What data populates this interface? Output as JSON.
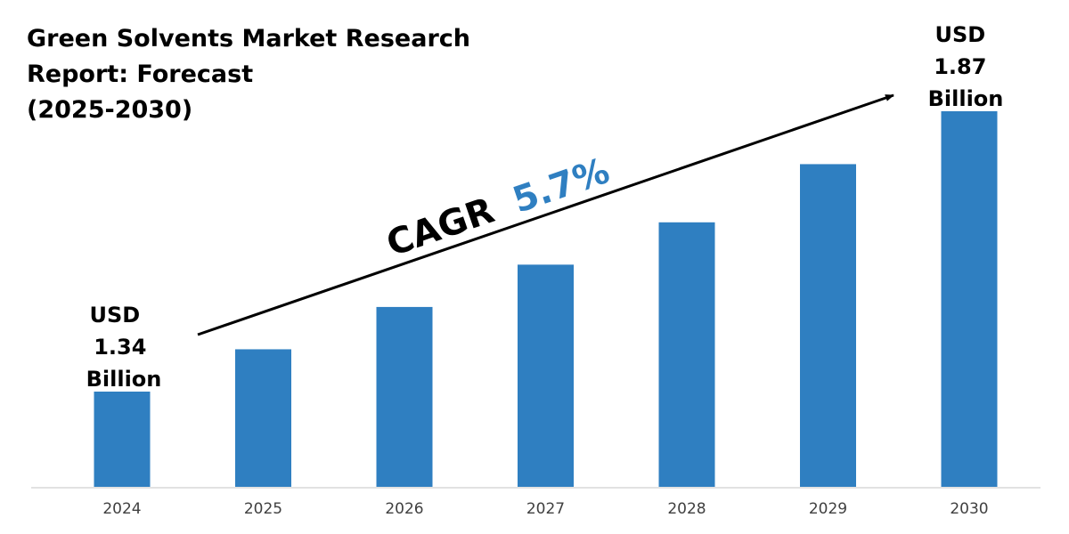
{
  "chart_data": {
    "type": "bar",
    "title_lines": [
      "Green Solvents Market Research",
      "Report: Forecast",
      "(2025-2030)"
    ],
    "categories": [
      "2024",
      "2025",
      "2026",
      "2027",
      "2028",
      "2029",
      "2030"
    ],
    "values": [
      1.34,
      1.42,
      1.5,
      1.58,
      1.66,
      1.77,
      1.87
    ],
    "unit": "USD Billion",
    "bar_color": "#2f7fc1",
    "start_label": [
      "USD",
      "1.34",
      "Billion"
    ],
    "end_label": [
      "USD",
      "1.87",
      "Billion"
    ],
    "cagr": {
      "label": "CAGR",
      "value": "5.7%",
      "value_color": "#2f7fc1"
    },
    "legend": "none",
    "grid": false
  }
}
